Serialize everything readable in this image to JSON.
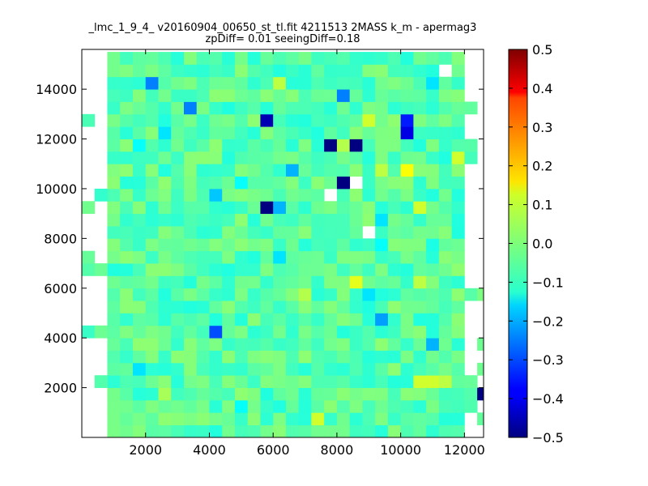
{
  "chart_data": {
    "type": "heatmap",
    "title": "_lmc_1_9_4_ v20160904_00650_st_tl.fit 4211513 2MASS k_m - apermag3",
    "subtitle": "zpDiff= 0.01 seeingDiff=0.18",
    "xlabel": "",
    "ylabel": "",
    "xlim": [
      0,
      12600
    ],
    "ylim": [
      0,
      15600
    ],
    "x_ticks": [
      "2000",
      "4000",
      "6000",
      "8000",
      "10000",
      "12000"
    ],
    "y_ticks": [
      "2000",
      "4000",
      "6000",
      "8000",
      "10000",
      "12000",
      "14000"
    ],
    "colorbar": {
      "vmin": -0.5,
      "vmax": 0.5,
      "cmap": "jet",
      "ticks": [
        "0.5",
        "0.4",
        "0.3",
        "0.2",
        "0.1",
        "0.0",
        "−0.1",
        "−0.2",
        "−0.3",
        "−0.4",
        "−0.5"
      ]
    },
    "grid": false,
    "cell_size": [
      400,
      500
    ],
    "empty_value_shown_as": "white",
    "base_level": -0.04,
    "column_range": [
      2,
      29
    ],
    "row_range": [
      0,
      30
    ],
    "edge_cells": [
      {
        "col": 0,
        "row": 13
      },
      {
        "col": 0,
        "row": 14
      },
      {
        "col": 0,
        "row": 25
      },
      {
        "col": 0,
        "row": 18
      },
      {
        "col": 0,
        "row": 8
      },
      {
        "col": 1,
        "row": 13
      },
      {
        "col": 1,
        "row": 4
      },
      {
        "col": 1,
        "row": 19
      },
      {
        "col": 1,
        "row": 8
      },
      {
        "col": 30,
        "row": 2
      },
      {
        "col": 30,
        "row": 3
      },
      {
        "col": 30,
        "row": 4
      },
      {
        "col": 30,
        "row": 11
      },
      {
        "col": 30,
        "row": 22
      },
      {
        "col": 30,
        "row": 23
      },
      {
        "col": 30,
        "row": 26
      },
      {
        "col": 31,
        "row": 1
      },
      {
        "col": 31,
        "row": 7
      },
      {
        "col": 31,
        "row": 5
      },
      {
        "col": 31,
        "row": 11
      }
    ],
    "notable_cells": [
      {
        "col": 5,
        "row": 28,
        "value": -0.25
      },
      {
        "col": 6,
        "row": 24,
        "value": -0.15
      },
      {
        "col": 4,
        "row": 23,
        "value": -0.12
      },
      {
        "col": 8,
        "row": 26,
        "value": -0.25
      },
      {
        "col": 14,
        "row": 25,
        "value": -0.45
      },
      {
        "col": 19,
        "row": 23,
        "value": -0.5
      },
      {
        "col": 20,
        "row": 27,
        "value": -0.25
      },
      {
        "col": 21,
        "row": 23,
        "value": -0.5
      },
      {
        "col": 20,
        "row": 23,
        "value": 0.05
      },
      {
        "col": 25,
        "row": 25,
        "value": -0.35
      },
      {
        "col": 25,
        "row": 24,
        "value": -0.4
      },
      {
        "col": 27,
        "row": 28,
        "value": -0.15
      },
      {
        "col": 28,
        "row": 29,
        "value": null
      },
      {
        "col": 22,
        "row": 25,
        "value": 0.08
      },
      {
        "col": 10,
        "row": 19,
        "value": -0.18
      },
      {
        "col": 12,
        "row": 20,
        "value": -0.12
      },
      {
        "col": 16,
        "row": 21,
        "value": -0.2
      },
      {
        "col": 15,
        "row": 18,
        "value": -0.2
      },
      {
        "col": 14,
        "row": 18,
        "value": -0.5
      },
      {
        "col": 19,
        "row": 19,
        "value": null
      },
      {
        "col": 20,
        "row": 20,
        "value": -0.5
      },
      {
        "col": 21,
        "row": 20,
        "value": null
      },
      {
        "col": 23,
        "row": 17,
        "value": -0.15
      },
      {
        "col": 22,
        "row": 16,
        "value": null
      },
      {
        "col": 25,
        "row": 21,
        "value": 0.12
      },
      {
        "col": 23,
        "row": 21,
        "value": 0.06
      },
      {
        "col": 15,
        "row": 14,
        "value": -0.15
      },
      {
        "col": 21,
        "row": 12,
        "value": 0.1
      },
      {
        "col": 22,
        "row": 11,
        "value": -0.15
      },
      {
        "col": 26,
        "row": 12,
        "value": 0.06
      },
      {
        "col": 23,
        "row": 9,
        "value": -0.22
      },
      {
        "col": 10,
        "row": 8,
        "value": -0.3
      },
      {
        "col": 27,
        "row": 7,
        "value": -0.2
      },
      {
        "col": 26,
        "row": 4,
        "value": 0.08
      },
      {
        "col": 27,
        "row": 4,
        "value": 0.08
      },
      {
        "col": 28,
        "row": 4,
        "value": 0.06
      },
      {
        "col": 4,
        "row": 5,
        "value": -0.15
      },
      {
        "col": 12,
        "row": 2,
        "value": -0.12
      },
      {
        "col": 18,
        "row": 1,
        "value": 0.08
      },
      {
        "col": 17,
        "row": 11,
        "value": 0.05
      },
      {
        "col": 15,
        "row": 28,
        "value": 0.06
      },
      {
        "col": 6,
        "row": 3,
        "value": 0.04
      },
      {
        "col": 26,
        "row": 18,
        "value": 0.08
      },
      {
        "col": 29,
        "row": 22,
        "value": 0.08
      },
      {
        "col": 27,
        "row": 15,
        "value": -0.1
      },
      {
        "col": 23,
        "row": 15,
        "value": -0.12
      }
    ]
  }
}
